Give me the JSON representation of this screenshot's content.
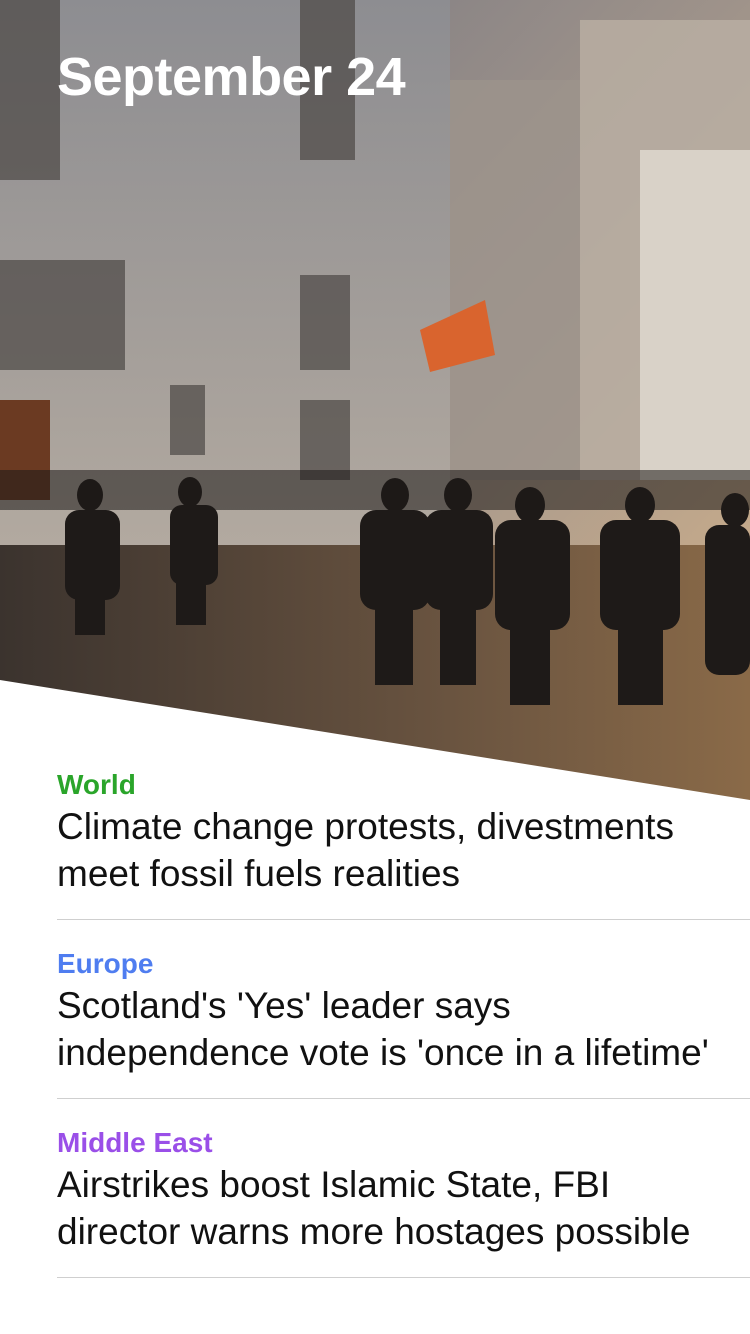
{
  "header": {
    "date": "September 24"
  },
  "articles": [
    {
      "category": "World",
      "color": "#2aa52a",
      "headline": "Climate change protests, divestments meet fossil fuels realities"
    },
    {
      "category": "Europe",
      "color": "#4f7df0",
      "headline": "Scotland's 'Yes' leader says independence vote is 'once in a lifetime'"
    },
    {
      "category": "Middle East",
      "color": "#9a4fe8",
      "headline": "Airstrikes boost Islamic State, FBI director warns more hostages possible"
    }
  ]
}
